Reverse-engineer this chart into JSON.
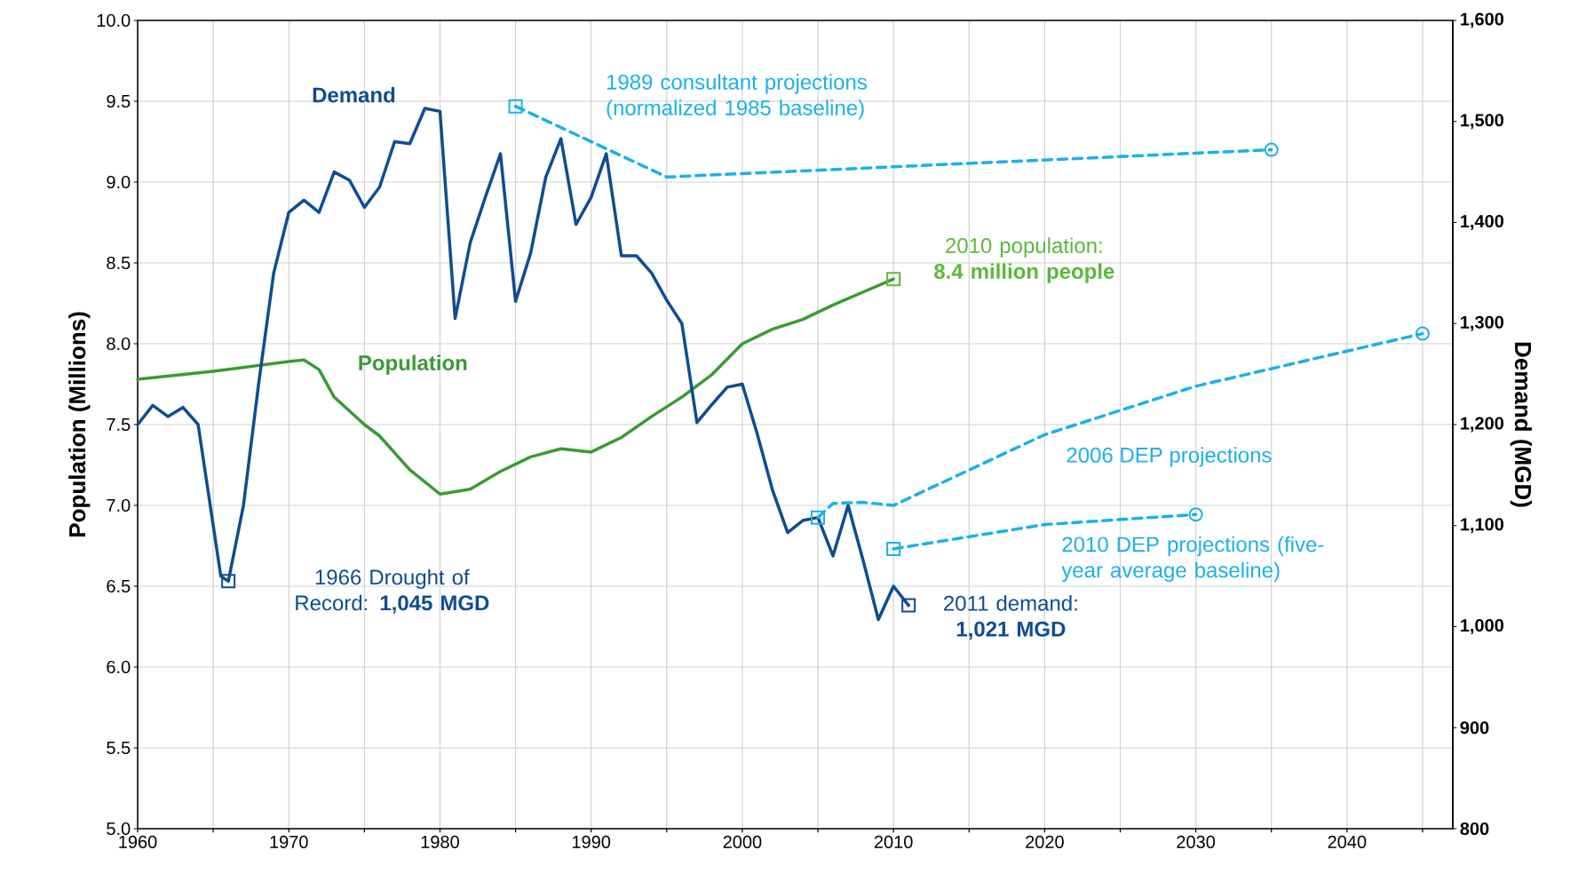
{
  "chart_data": {
    "type": "line",
    "ylabel": "Population (Millions)",
    "y2label": "Demand (MGD)",
    "xlim": [
      1960,
      2047
    ],
    "ylim": [
      5,
      10
    ],
    "y2lim": [
      800,
      1600
    ],
    "xticks": [
      1960,
      {
        "value": 1965,
        "label": null
      },
      1970,
      {
        "value": 1975,
        "label": null
      },
      1980,
      {
        "value": 1985,
        "label": null
      },
      1990,
      {
        "value": 1995,
        "label": null
      },
      2000,
      {
        "value": 2005,
        "label": null
      },
      2010,
      {
        "value": 2015,
        "label": null
      },
      2020,
      {
        "value": 2025,
        "label": null
      },
      2030,
      {
        "value": 2035,
        "label": null
      },
      2040,
      {
        "value": 2045,
        "label": null
      }
    ],
    "yticks": [
      {
        "value": 5,
        "label": "5.0"
      },
      5.5,
      {
        "value": 6,
        "label": "6.0"
      },
      6.5,
      {
        "value": 7,
        "label": "7.0"
      },
      7.5,
      {
        "value": 8,
        "label": "8.0"
      },
      8.5,
      {
        "value": 9,
        "label": "9.0"
      },
      9.5,
      {
        "value": 10,
        "label": "10.0"
      }
    ],
    "y2ticks": [
      800,
      900,
      {
        "value": 1000,
        "label": "1,000"
      },
      {
        "value": 1100,
        "label": "1,100"
      },
      {
        "value": 1200,
        "label": "1,200"
      },
      {
        "value": 1300,
        "label": "1,300"
      },
      {
        "value": 1400,
        "label": "1,400"
      },
      {
        "value": 1500,
        "label": "1,500"
      },
      {
        "value": 1600,
        "label": "1,600"
      }
    ],
    "grid": true,
    "series": [
      {
        "name": "Population",
        "color": "#3a9a35",
        "x": [
          1960,
          1965,
          1970,
          1971,
          1972,
          1973,
          1975,
          1976,
          1978,
          1980,
          1982,
          1984,
          1986,
          1988,
          1990,
          1992,
          1994,
          1996,
          1998,
          2000,
          2002,
          2004,
          2006,
          2008,
          2010
        ],
        "values": [
          7.78,
          7.83,
          7.89,
          7.9,
          7.84,
          7.67,
          7.5,
          7.43,
          7.22,
          7.07,
          7.1,
          7.21,
          7.3,
          7.35,
          7.33,
          7.42,
          7.55,
          7.67,
          7.81,
          8.0,
          8.09,
          8.15,
          8.24,
          8.32,
          8.4
        ]
      },
      {
        "name": "Demand",
        "color": "#0f4c92",
        "axis": "y2",
        "x": [
          1960,
          1961,
          1962,
          1963,
          1964,
          1965,
          1965.5,
          1966,
          1967,
          1968,
          1969,
          1970,
          1971,
          1972,
          1973,
          1974,
          1975,
          1976,
          1977,
          1978,
          1979,
          1980,
          1981,
          1982,
          1983,
          1984,
          1985,
          1986,
          1987,
          1988,
          1989,
          1990,
          1991,
          1992,
          1993,
          1994,
          1995,
          1996,
          1997,
          1998,
          1999,
          2000,
          2001,
          2002,
          2003,
          2004,
          2005,
          2006,
          2007,
          2008,
          2009,
          2010,
          2011
        ],
        "values": [
          1200,
          1219,
          1208,
          1217,
          1200,
          1100,
          1050,
          1045,
          1120,
          1240,
          1350,
          1410,
          1422,
          1410,
          1450,
          1442,
          1415,
          1435,
          1480,
          1478,
          1513,
          1510,
          1305,
          1380,
          1425,
          1468,
          1322,
          1370,
          1445,
          1483,
          1398,
          1425,
          1468,
          1367,
          1367,
          1350,
          1323,
          1300,
          1202,
          1220,
          1237,
          1240,
          1190,
          1135,
          1093,
          1105,
          1108,
          1070,
          1120,
          1065,
          1007,
          1040,
          1021
        ]
      },
      {
        "name": "1989 consultant projections (normalized 1985 baseline)",
        "color": "#1ab0ec",
        "axis": "y2",
        "line_style": "dashed",
        "x": [
          1985,
          1995,
          2035
        ],
        "values": [
          1515,
          1445,
          1472
        ]
      },
      {
        "name": "2006 DEP projections",
        "color": "#1ab0ec",
        "axis": "y2",
        "line_style": "dashed",
        "x": [
          2005,
          2006,
          2008,
          2010,
          2020,
          2030,
          2045
        ],
        "values": [
          1108,
          1122,
          1123,
          1120,
          1190,
          1238,
          1290
        ]
      },
      {
        "name": "2010 DEP projections (five-year average baseline)",
        "color": "#1ab0ec",
        "axis": "y2",
        "line_style": "dashed",
        "x": [
          2010,
          2020,
          2030
        ],
        "values": [
          1077,
          1101,
          1111
        ]
      },
      {
        "type": "scatter",
        "marker": "square",
        "color": "#1ab0ec",
        "axis": "y2",
        "x": [
          1985,
          2005,
          2010
        ],
        "values": [
          1515,
          1108,
          1077
        ]
      },
      {
        "type": "scatter",
        "marker": "circle",
        "color": "#1ab0ec",
        "axis": "y2",
        "x": [
          2035,
          2045,
          2030
        ],
        "values": [
          1472,
          1290,
          1111
        ]
      },
      {
        "type": "scatter",
        "marker": "square",
        "color": "#0f4c92",
        "axis": "y2",
        "x": [
          1966
        ],
        "values": [
          1045
        ]
      },
      {
        "type": "scatter",
        "marker": "square",
        "color": "#0f4c92",
        "axis": "y2",
        "x": [
          2011
        ],
        "values": [
          1021
        ]
      },
      {
        "type": "scatter",
        "marker": "square",
        "color": "#5cb83a",
        "x": [
          2010
        ],
        "values": [
          8.4
        ]
      }
    ],
    "annotations": [
      "1966 Drought of Record: **1,045 MGD**",
      {
        "text": "2010 population: **8.4 million people**",
        "x": 2010,
        "y": 8.4
      },
      "2011 demand: **1,021 MGD**"
    ]
  }
}
